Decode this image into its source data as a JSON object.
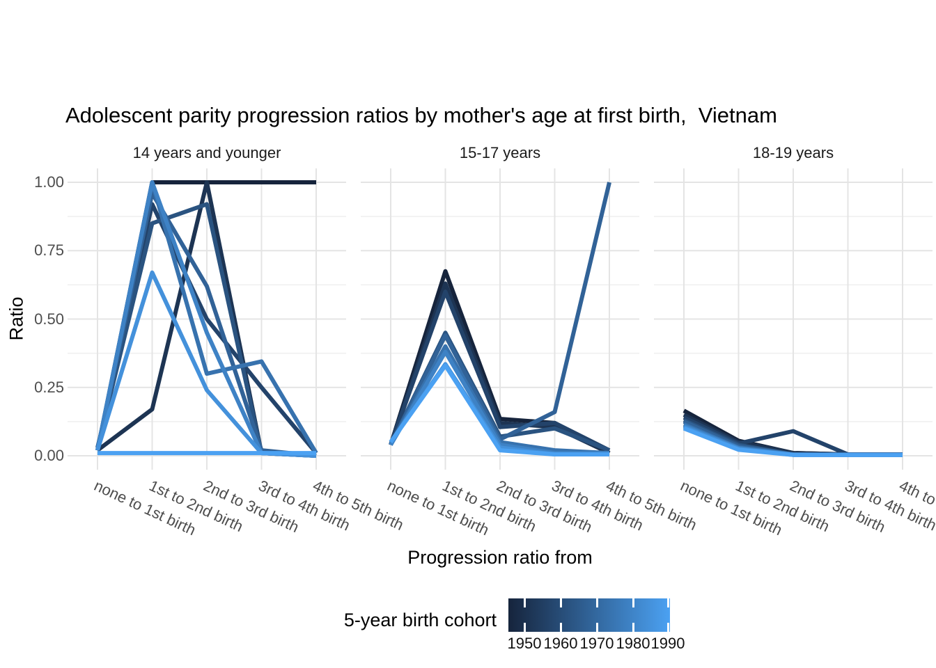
{
  "chart_data": {
    "type": "line",
    "title": "Adolescent parity progression ratios by mother's age at first birth,  Vietnam",
    "xlabel": "Progression ratio from",
    "ylabel": "Ratio",
    "categories": [
      "none to 1st birth",
      "1st to 2nd birth",
      "2nd to 3rd birth",
      "3rd to 4th birth",
      "4th to 5th birth"
    ],
    "ylim": [
      0,
      1
    ],
    "yticks": [
      {
        "value": 1.0,
        "label": "1.00"
      },
      {
        "value": 0.75,
        "label": "0.75"
      },
      {
        "value": 0.5,
        "label": "0.50"
      },
      {
        "value": 0.25,
        "label": "0.25"
      },
      {
        "value": 0.0,
        "label": "0.00"
      }
    ],
    "grid": {
      "show": true,
      "major_color": "#e4e4e4",
      "minor_color": "#efefef",
      "minor_step": 0.125
    },
    "legend": {
      "title": "5-year birth cohort",
      "position": "bottom",
      "style": "continuous-colorbar",
      "gradient_start": "#16243C",
      "gradient_end": "#4BA1F2",
      "tick_labels": [
        "1950",
        "1960",
        "1970",
        "1980",
        "1990"
      ]
    },
    "cohorts": [
      {
        "year": 1950,
        "color": "#16243C"
      },
      {
        "year": 1955,
        "color": "#1D3453"
      },
      {
        "year": 1960,
        "color": "#23436A"
      },
      {
        "year": 1965,
        "color": "#2A5380"
      },
      {
        "year": 1970,
        "color": "#316297"
      },
      {
        "year": 1975,
        "color": "#3772AE"
      },
      {
        "year": 1980,
        "color": "#3E82C5"
      },
      {
        "year": 1985,
        "color": "#4491DB"
      },
      {
        "year": 1990,
        "color": "#4BA1F2"
      }
    ],
    "facets": [
      {
        "label": "14 years and younger",
        "series": [
          {
            "cohort": 1950,
            "values": [
              0.02,
              1.0,
              1.0,
              1.0,
              1.0
            ]
          },
          {
            "cohort": 1955,
            "values": [
              0.02,
              0.17,
              1.0,
              0.01,
              0.0
            ]
          },
          {
            "cohort": 1960,
            "values": [
              0.02,
              0.92,
              0.5,
              0.25,
              0.01
            ]
          },
          {
            "cohort": 1965,
            "values": [
              0.03,
              0.85,
              0.92,
              0.01,
              0.0
            ]
          },
          {
            "cohort": 1970,
            "values": [
              0.02,
              0.96,
              0.62,
              0.02,
              0.0
            ]
          },
          {
            "cohort": 1975,
            "values": [
              0.02,
              1.0,
              0.3,
              0.345,
              0.01
            ]
          },
          {
            "cohort": 1980,
            "values": [
              0.02,
              1.0,
              0.45,
              0.01,
              0.0
            ]
          },
          {
            "cohort": 1985,
            "values": [
              0.02,
              0.67,
              0.24,
              0.01,
              0.0
            ]
          },
          {
            "cohort": 1990,
            "values": [
              0.01,
              0.01,
              0.01,
              0.01,
              0.01
            ]
          }
        ]
      },
      {
        "label": "15-17 years",
        "series": [
          {
            "cohort": 1950,
            "values": [
              0.04,
              0.675,
              0.135,
              0.12,
              0.01
            ]
          },
          {
            "cohort": 1955,
            "values": [
              0.04,
              0.63,
              0.12,
              0.105,
              0.01
            ]
          },
          {
            "cohort": 1960,
            "values": [
              0.04,
              0.6,
              0.105,
              0.12,
              0.02
            ]
          },
          {
            "cohort": 1965,
            "values": [
              0.04,
              0.45,
              0.07,
              0.1,
              0.02
            ]
          },
          {
            "cohort": 1970,
            "values": [
              0.04,
              0.44,
              0.06,
              0.16,
              1.0
            ]
          },
          {
            "cohort": 1975,
            "values": [
              0.04,
              0.4,
              0.05,
              0.02,
              0.01
            ]
          },
          {
            "cohort": 1980,
            "values": [
              0.04,
              0.38,
              0.04,
              0.01,
              0.01
            ]
          },
          {
            "cohort": 1985,
            "values": [
              0.05,
              0.335,
              0.03,
              0.005,
              0.005
            ]
          },
          {
            "cohort": 1990,
            "values": [
              0.05,
              0.33,
              0.02,
              0.005,
              0.005
            ]
          }
        ]
      },
      {
        "label": "18-19 years",
        "series": [
          {
            "cohort": 1950,
            "values": [
              0.165,
              0.055,
              0.01,
              0.005,
              0.005
            ]
          },
          {
            "cohort": 1955,
            "values": [
              0.15,
              0.05,
              0.01,
              0.005,
              0.005
            ]
          },
          {
            "cohort": 1960,
            "values": [
              0.14,
              0.045,
              0.09,
              0.005,
              0.005
            ]
          },
          {
            "cohort": 1965,
            "values": [
              0.13,
              0.04,
              0.005,
              0.005,
              0.005
            ]
          },
          {
            "cohort": 1970,
            "values": [
              0.125,
              0.035,
              0.005,
              0.005,
              0.005
            ]
          },
          {
            "cohort": 1975,
            "values": [
              0.115,
              0.03,
              0.005,
              0.003,
              0.003
            ]
          },
          {
            "cohort": 1980,
            "values": [
              0.11,
              0.028,
              0.004,
              0.003,
              0.003
            ]
          },
          {
            "cohort": 1985,
            "values": [
              0.105,
              0.025,
              0.003,
              0.003,
              0.003
            ]
          },
          {
            "cohort": 1990,
            "values": [
              0.1,
              0.022,
              0.003,
              0.003,
              0.003
            ]
          }
        ]
      }
    ]
  }
}
